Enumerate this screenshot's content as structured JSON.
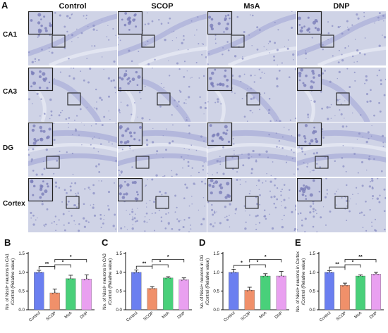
{
  "figure": {
    "panel_A_letter": "A",
    "columns": [
      "Control",
      "SCOP",
      "MsA",
      "DNP"
    ],
    "rows": [
      "CA1",
      "CA3",
      "DG",
      "Cortex"
    ],
    "stain_colors": {
      "background": "#cfd3e6",
      "cells": "#8b8fc4",
      "band": "#a9aed8"
    }
  },
  "chart_data": [
    {
      "panel": "B",
      "type": "bar",
      "categories": [
        "Control",
        "SCOP",
        "MsA",
        "DNP"
      ],
      "values": [
        1.0,
        0.45,
        0.83,
        0.82
      ],
      "errors": [
        0.05,
        0.1,
        0.09,
        0.11
      ],
      "colors": [
        "#6b7ff0",
        "#f0906a",
        "#49d07a",
        "#e9a0f0"
      ],
      "ylabel_line1": "No. of Nissl+ neurons in CA1",
      "ylabel_line2": "/Control (Relative value)",
      "ylim": [
        0,
        1.5
      ],
      "yticks": [
        "0.0",
        "0.5",
        "1.0",
        "1.5"
      ],
      "significance": [
        {
          "from": 0,
          "to": 1,
          "label": "**"
        },
        {
          "from": 1,
          "to": 2,
          "label": "*"
        },
        {
          "from": 1,
          "to": 3,
          "label": "*"
        }
      ]
    },
    {
      "panel": "C",
      "type": "bar",
      "categories": [
        "Control",
        "SCOP",
        "MsA",
        "DNP"
      ],
      "values": [
        1.0,
        0.57,
        0.85,
        0.8
      ],
      "errors": [
        0.06,
        0.05,
        0.03,
        0.05
      ],
      "colors": [
        "#6b7ff0",
        "#f0906a",
        "#49d07a",
        "#e9a0f0"
      ],
      "ylabel_line1": "No. of Nissl+ neurons in CA3",
      "ylabel_line2": "/Control (Relative value)",
      "ylim": [
        0,
        1.5
      ],
      "yticks": [
        "0.0",
        "0.5",
        "1.0",
        "1.5"
      ],
      "significance": [
        {
          "from": 0,
          "to": 1,
          "label": "**"
        },
        {
          "from": 1,
          "to": 2,
          "label": "*"
        },
        {
          "from": 1,
          "to": 3,
          "label": "*"
        }
      ]
    },
    {
      "panel": "D",
      "type": "bar",
      "categories": [
        "Control",
        "SCOP",
        "MsA",
        "DNP"
      ],
      "values": [
        1.0,
        0.52,
        0.9,
        0.9
      ],
      "errors": [
        0.08,
        0.08,
        0.06,
        0.12
      ],
      "colors": [
        "#6b7ff0",
        "#f0906a",
        "#49d07a",
        "#e9a0f0"
      ],
      "ylabel_line1": "No. of Nissl+ neurons in DG",
      "ylabel_line2": "/Control (Relative value)",
      "ylim": [
        0,
        1.5
      ],
      "yticks": [
        "0.0",
        "0.5",
        "1.0",
        "1.5"
      ],
      "significance": [
        {
          "from": 0,
          "to": 1,
          "label": "*"
        },
        {
          "from": 1,
          "to": 2,
          "label": "*"
        },
        {
          "from": 1,
          "to": 3,
          "label": "*"
        }
      ]
    },
    {
      "panel": "E",
      "type": "bar",
      "categories": [
        "Control",
        "SCOP",
        "MsA",
        "DNP"
      ],
      "values": [
        1.0,
        0.65,
        0.9,
        0.95
      ],
      "errors": [
        0.04,
        0.06,
        0.03,
        0.05
      ],
      "colors": [
        "#6b7ff0",
        "#f0906a",
        "#49d07a",
        "#e9a0f0"
      ],
      "ylabel_line1": "No. of Nissl+ neurons in Cortex",
      "ylabel_line2": "/Control (Relative value)",
      "ylim": [
        0,
        1.5
      ],
      "yticks": [
        "0.0",
        "0.5",
        "1.0",
        "1.5"
      ],
      "significance": [
        {
          "from": 0,
          "to": 1,
          "label": "**"
        },
        {
          "from": 1,
          "to": 2,
          "label": "*"
        },
        {
          "from": 1,
          "to": 3,
          "label": "**"
        }
      ]
    }
  ]
}
